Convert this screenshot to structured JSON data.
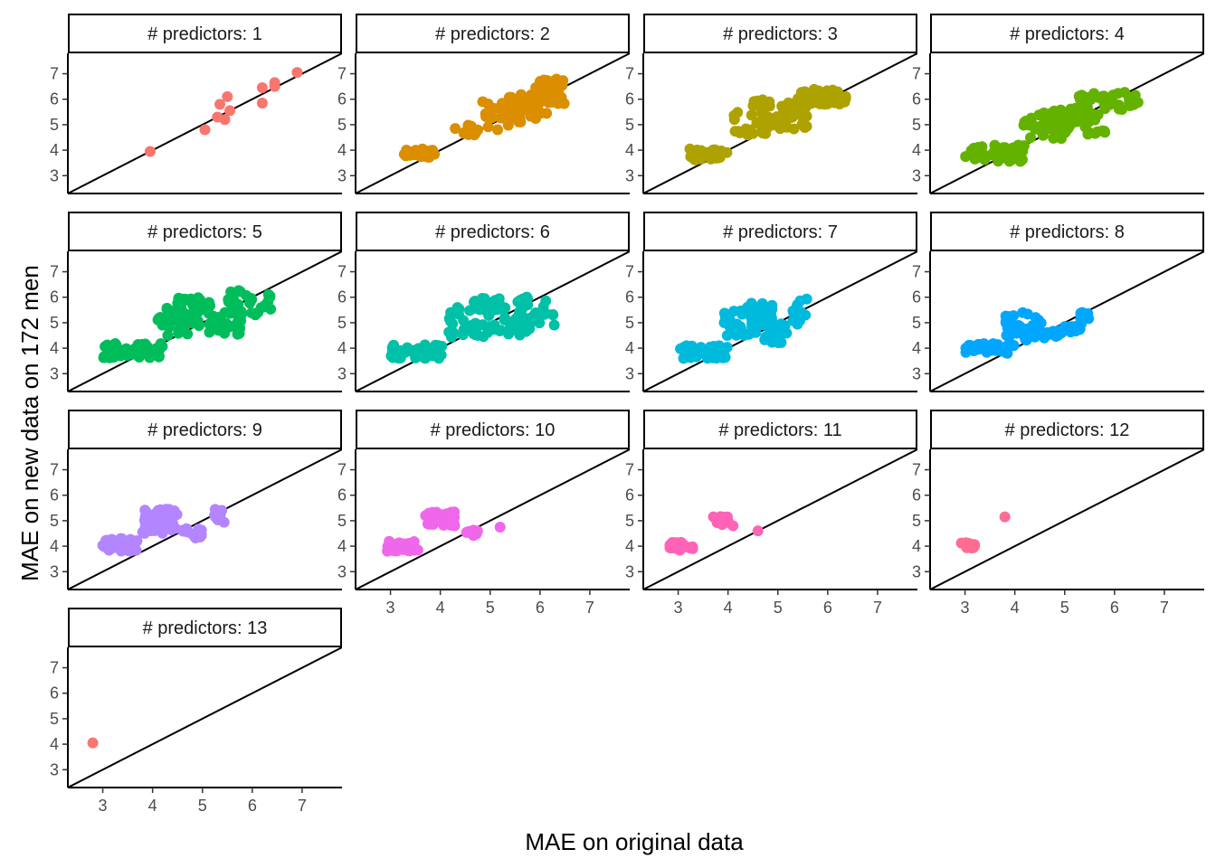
{
  "chart_data": {
    "type": "scatter",
    "facet_var": "# predictors",
    "xlabel": "MAE on original data",
    "ylabel": "MAE on new data on 172 men",
    "xlim": [
      2.3,
      7.8
    ],
    "ylim": [
      2.3,
      7.8
    ],
    "x_ticks": [
      3,
      4,
      5,
      6,
      7
    ],
    "y_ticks": [
      3,
      4,
      5,
      6,
      7
    ],
    "reference_line": "y = x",
    "panels": [
      {
        "label": "# predictors: 1",
        "color": "#F8766D",
        "clusters": [],
        "points": [
          [
            3.95,
            3.95
          ],
          [
            5.05,
            4.8
          ],
          [
            5.3,
            5.3
          ],
          [
            5.35,
            5.8
          ],
          [
            5.45,
            5.2
          ],
          [
            5.5,
            6.1
          ],
          [
            5.55,
            5.55
          ],
          [
            6.2,
            6.45
          ],
          [
            6.2,
            5.85
          ],
          [
            6.45,
            6.5
          ],
          [
            6.45,
            6.65
          ],
          [
            6.9,
            7.05
          ]
        ]
      },
      {
        "label": "# predictors: 2",
        "color": "#DB8E00",
        "clusters": [
          [
            3.2,
            3.9,
            3.65,
            4.05,
            22
          ],
          [
            4.35,
            4.85,
            4.6,
            5.0,
            14
          ],
          [
            4.9,
            5.6,
            4.6,
            5.9,
            18
          ],
          [
            5.3,
            6.2,
            5.1,
            6.2,
            40
          ],
          [
            5.9,
            6.5,
            5.8,
            6.8,
            30
          ]
        ],
        "points": [
          [
            4.3,
            4.85
          ],
          [
            4.85,
            5.9
          ],
          [
            5.0,
            5.7
          ],
          [
            5.15,
            4.8
          ]
        ]
      },
      {
        "label": "# predictors: 3",
        "color": "#AEA200",
        "clusters": [
          [
            3.2,
            4.0,
            3.6,
            4.05,
            28
          ],
          [
            4.1,
            5.0,
            4.6,
            5.5,
            30
          ],
          [
            4.5,
            4.9,
            5.7,
            6.0,
            12
          ],
          [
            5.0,
            5.6,
            4.8,
            5.9,
            30
          ],
          [
            5.4,
            6.4,
            5.8,
            6.4,
            36
          ]
        ],
        "points": []
      },
      {
        "label": "# predictors: 4",
        "color": "#64B200",
        "clusters": [
          [
            3.0,
            4.2,
            3.55,
            4.2,
            45
          ],
          [
            4.1,
            5.0,
            4.4,
            5.5,
            30
          ],
          [
            4.7,
            5.5,
            4.9,
            5.7,
            30
          ],
          [
            5.0,
            5.9,
            4.6,
            5.5,
            25
          ],
          [
            5.2,
            6.5,
            5.6,
            6.3,
            40
          ]
        ],
        "points": []
      },
      {
        "label": "# predictors: 5",
        "color": "#00BD5C",
        "clusters": [
          [
            3.0,
            4.2,
            3.6,
            4.2,
            45
          ],
          [
            4.1,
            5.0,
            4.5,
            5.6,
            35
          ],
          [
            4.5,
            5.2,
            5.5,
            6.0,
            25
          ],
          [
            5.0,
            5.8,
            4.5,
            5.5,
            30
          ],
          [
            5.5,
            6.4,
            5.3,
            6.3,
            30
          ]
        ],
        "points": []
      },
      {
        "label": "# predictors: 6",
        "color": "#00C1A7",
        "clusters": [
          [
            3.0,
            4.1,
            3.6,
            4.15,
            45
          ],
          [
            4.1,
            5.0,
            4.4,
            5.6,
            35
          ],
          [
            4.6,
            5.3,
            5.5,
            6.0,
            25
          ],
          [
            5.0,
            5.8,
            4.5,
            5.3,
            30
          ],
          [
            5.4,
            6.3,
            4.9,
            6.1,
            30
          ]
        ],
        "points": []
      },
      {
        "label": "# predictors: 7",
        "color": "#00BADE",
        "clusters": [
          [
            3.0,
            4.0,
            3.6,
            4.1,
            45
          ],
          [
            3.9,
            4.7,
            4.5,
            5.5,
            35
          ],
          [
            4.3,
            4.9,
            5.1,
            5.8,
            20
          ],
          [
            4.7,
            5.2,
            4.2,
            5.0,
            20
          ],
          [
            5.3,
            5.6,
            4.7,
            6.0,
            15
          ]
        ],
        "points": []
      },
      {
        "label": "# predictors: 8",
        "color": "#00A6FF",
        "clusters": [
          [
            3.0,
            4.0,
            3.8,
            4.2,
            40
          ],
          [
            3.8,
            4.6,
            4.3,
            5.4,
            40
          ],
          [
            4.4,
            5.0,
            4.4,
            4.7,
            15
          ],
          [
            5.0,
            5.4,
            4.6,
            5.0,
            10
          ],
          [
            5.3,
            5.5,
            5.1,
            5.6,
            8
          ]
        ],
        "points": [
          [
            3.85,
            3.8
          ]
        ]
      },
      {
        "label": "# predictors: 9",
        "color": "#B385FF",
        "clusters": [
          [
            3.0,
            3.7,
            3.8,
            4.3,
            40
          ],
          [
            3.8,
            4.5,
            4.5,
            5.45,
            45
          ],
          [
            4.6,
            5.0,
            4.3,
            4.7,
            15
          ],
          [
            5.2,
            5.5,
            4.7,
            5.5,
            8
          ]
        ],
        "points": []
      },
      {
        "label": "# predictors: 10",
        "color": "#EF67EB",
        "clusters": [
          [
            2.9,
            3.5,
            3.8,
            4.2,
            30
          ],
          [
            3.7,
            4.3,
            4.8,
            5.35,
            35
          ],
          [
            4.5,
            4.8,
            4.4,
            4.65,
            8
          ]
        ],
        "points": [
          [
            3.55,
            3.85
          ],
          [
            5.2,
            4.75
          ]
        ]
      },
      {
        "label": "# predictors: 11",
        "color": "#FF63B6",
        "clusters": [
          [
            2.8,
            3.3,
            3.8,
            4.15,
            25
          ],
          [
            3.7,
            4.0,
            4.85,
            5.2,
            15
          ]
        ],
        "points": [
          [
            4.1,
            4.8
          ],
          [
            4.6,
            4.6
          ]
        ]
      },
      {
        "label": "# predictors: 12",
        "color": "#FF6C91",
        "clusters": [
          [
            2.9,
            3.2,
            3.9,
            4.2,
            15
          ]
        ],
        "points": [
          [
            3.8,
            5.15
          ]
        ]
      },
      {
        "label": "# predictors: 13",
        "color": "#F8766D",
        "clusters": [],
        "points": [
          [
            2.8,
            4.05
          ]
        ]
      }
    ]
  }
}
